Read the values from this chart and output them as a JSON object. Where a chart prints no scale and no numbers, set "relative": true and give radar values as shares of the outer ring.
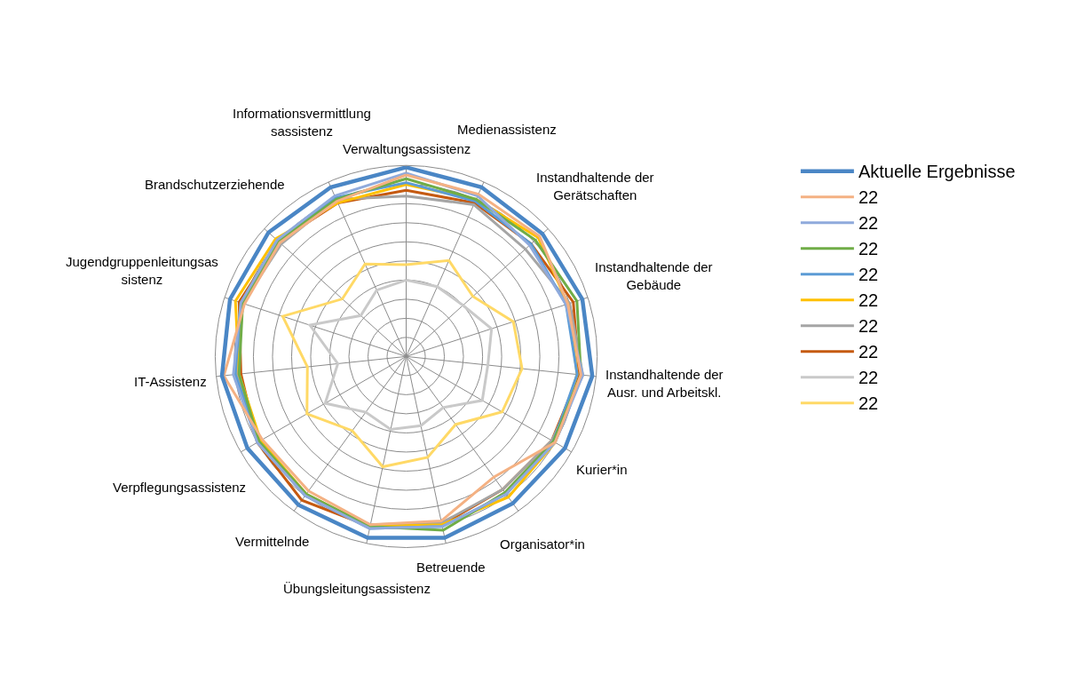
{
  "chart_data": {
    "type": "radar",
    "relative": true,
    "grid": true,
    "legend": "right",
    "marker": "none",
    "categories": [
      "Verwaltungsassistenz",
      "Medienassistenz",
      "Instandhaltende der Gerätschaften",
      "Instandhaltende der Gebäude",
      "Instandhaltende der Ausr. und Arbeitskl.",
      "Kurier*in",
      "Organisator*in",
      "Betreuende",
      "Übungsleitungsassistenz",
      "Vermittelnde",
      "Verpflegungsassistenz",
      "IT-Assistenz",
      "Jugendgruppenleitungsassistenz",
      "Brandschutzerziehende",
      "Informationsvermittlungsassistenz"
    ],
    "series": [
      {
        "name": "22",
        "color": "#ffd966",
        "values": [
          0.48,
          0.55,
          0.47,
          0.59,
          0.61,
          0.58,
          0.44,
          0.54,
          0.59,
          0.48,
          0.6,
          0.52,
          0.68,
          0.45,
          0.53
        ]
      },
      {
        "name": "22",
        "color": "#c9c9c9",
        "values": [
          0.4,
          0.4,
          0.4,
          0.47,
          0.43,
          0.46,
          0.33,
          0.37,
          0.39,
          0.36,
          0.49,
          0.36,
          0.53,
          0.32,
          0.38
        ]
      },
      {
        "name": "22",
        "color": "#c55a11",
        "values": [
          0.87,
          0.88,
          0.88,
          0.92,
          0.91,
          0.88,
          0.86,
          0.9,
          0.91,
          0.93,
          0.9,
          0.87,
          0.92,
          0.9,
          0.88
        ]
      },
      {
        "name": "22",
        "color": "#a5a5a5",
        "values": [
          0.84,
          0.87,
          0.84,
          0.9,
          0.93,
          0.88,
          0.86,
          0.89,
          0.9,
          0.9,
          0.9,
          0.89,
          0.9,
          0.88,
          0.9
        ]
      },
      {
        "name": "22",
        "color": "#ffc000",
        "values": [
          0.9,
          0.9,
          0.93,
          0.89,
          0.9,
          0.9,
          0.91,
          0.9,
          0.91,
          0.89,
          0.88,
          0.88,
          0.94,
          0.92,
          0.88
        ]
      },
      {
        "name": "22",
        "color": "#5b9bd5",
        "values": [
          0.91,
          0.89,
          0.88,
          0.88,
          0.9,
          0.89,
          0.89,
          0.91,
          0.92,
          0.9,
          0.89,
          0.9,
          0.91,
          0.9,
          0.91
        ]
      },
      {
        "name": "22",
        "color": "#70ad47",
        "values": [
          0.93,
          0.9,
          0.91,
          0.94,
          0.92,
          0.89,
          0.88,
          0.93,
          0.91,
          0.89,
          0.89,
          0.88,
          0.9,
          0.9,
          0.9
        ]
      },
      {
        "name": "22",
        "color": "#8faadc",
        "values": [
          0.96,
          0.92,
          0.87,
          0.88,
          0.93,
          0.9,
          0.89,
          0.91,
          0.92,
          0.9,
          0.9,
          0.91,
          0.91,
          0.91,
          0.92
        ]
      },
      {
        "name": "22",
        "color": "#f4b183",
        "values": [
          0.95,
          0.93,
          0.94,
          0.89,
          0.92,
          0.9,
          0.78,
          0.88,
          0.9,
          0.87,
          0.87,
          0.96,
          0.89,
          0.89,
          0.89
        ]
      },
      {
        "name": "Aktuelle Ergebnisse",
        "color": "#4a86c5",
        "values": [
          0.99,
          0.97,
          0.96,
          0.97,
          0.98,
          0.96,
          0.95,
          0.97,
          0.97,
          0.96,
          0.96,
          0.97,
          0.97,
          0.97,
          0.97
        ]
      }
    ]
  }
}
